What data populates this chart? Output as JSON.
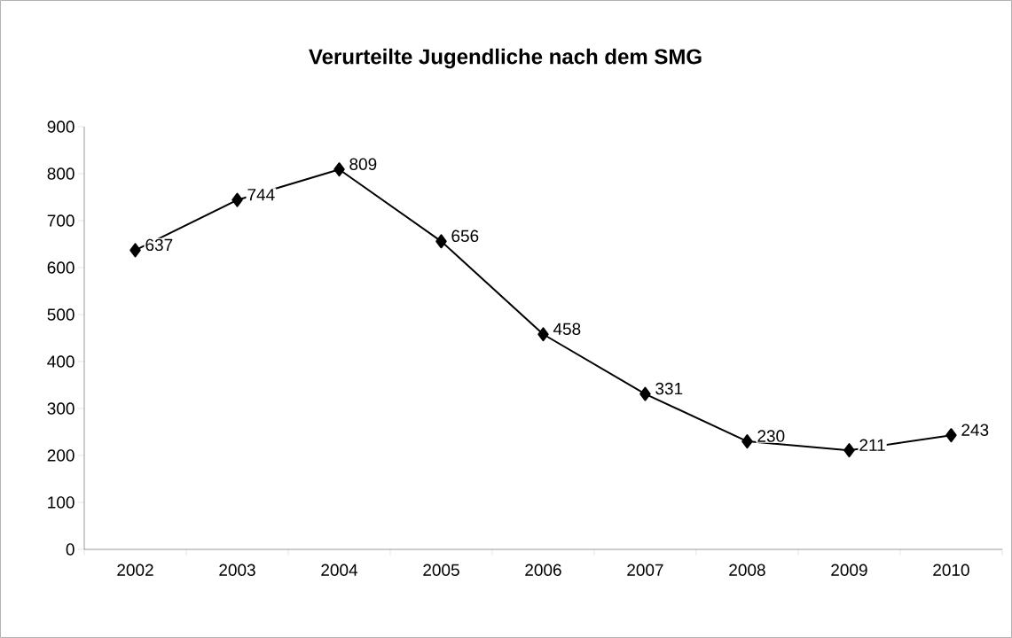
{
  "chart_data": {
    "type": "line",
    "title": "Verurteilte Jugendliche nach dem SMG",
    "categories": [
      "2002",
      "2003",
      "2004",
      "2005",
      "2006",
      "2007",
      "2008",
      "2009",
      "2010"
    ],
    "values": [
      637,
      744,
      809,
      656,
      458,
      331,
      230,
      211,
      243
    ],
    "color": "#000000",
    "marker": "diamond",
    "line_style": "solid",
    "data_labels": true,
    "grid": false,
    "legend": false,
    "ylim": [
      0,
      900
    ],
    "yticks": [
      0,
      100,
      200,
      300,
      400,
      500,
      600,
      700,
      800,
      900
    ]
  }
}
